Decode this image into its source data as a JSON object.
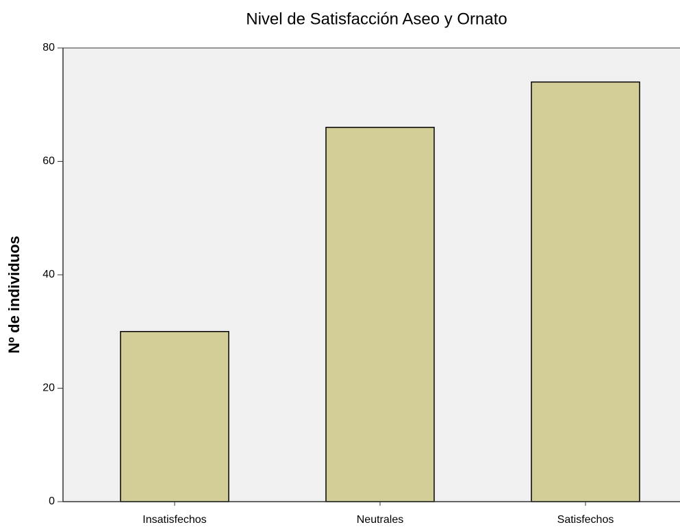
{
  "chart_data": {
    "type": "bar",
    "title": "Nivel de Satisfacción Aseo y Ornato",
    "y_label": "Nº de individuos",
    "categories": [
      "Insatisfechos",
      "Neutrales",
      "Satisfechos"
    ],
    "values": [
      30,
      66,
      74
    ],
    "color": "#d3cd98",
    "ylim": [
      0,
      80
    ],
    "yticks": [
      0,
      20,
      40,
      60,
      80
    ],
    "grid": false
  }
}
